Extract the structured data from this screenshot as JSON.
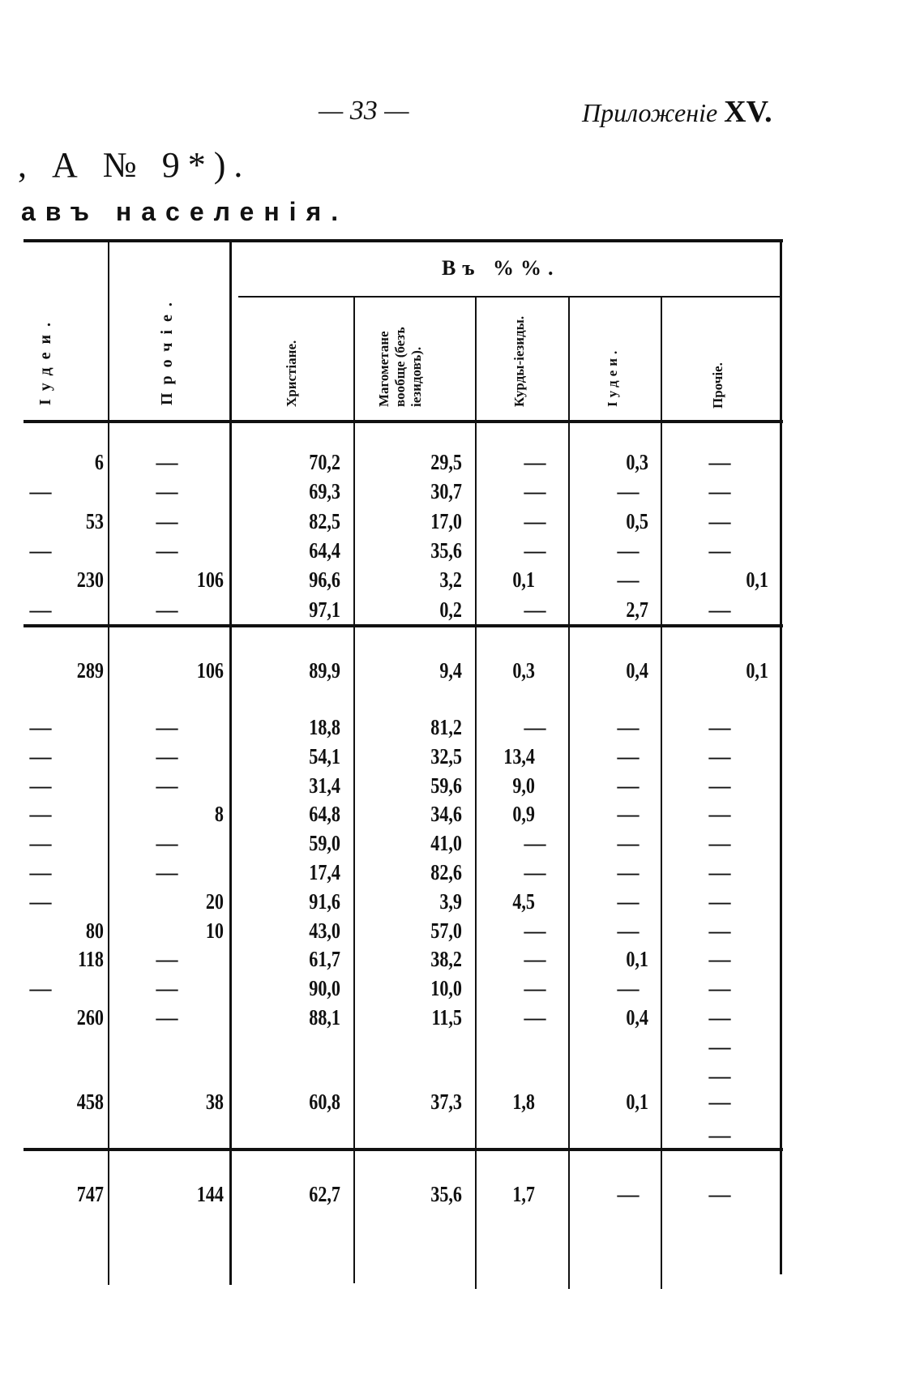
{
  "header": {
    "page_number": "— 33 —",
    "appendix_label": "Приложеніе",
    "appendix_number": "XV."
  },
  "title": ", А № 9*).",
  "subtitle": "авъ населенія.",
  "table": {
    "group_header": "Въ %%.",
    "columns": [
      "Iудеи.",
      "Прочіе.",
      "Христіане.",
      "Магометане вообще (безъ іезидовъ).",
      "Курды-іезиды.",
      "Iудеи.",
      "Прочіе."
    ],
    "section1": [
      [
        "6",
        "—",
        "70,2",
        "29,5",
        "—",
        "0,3",
        "—"
      ],
      [
        "—",
        "—",
        "69,3",
        "30,7",
        "—",
        "—",
        "—"
      ],
      [
        "53",
        "—",
        "82,5",
        "17,0",
        "—",
        "0,5",
        "—"
      ],
      [
        "—",
        "—",
        "64,4",
        "35,6",
        "—",
        "—",
        "—"
      ],
      [
        "230",
        "106",
        "96,6",
        "3,2",
        "0,1",
        "—",
        "0,1"
      ],
      [
        "—",
        "—",
        "97,1",
        "0,2",
        "—",
        "2,7",
        "—"
      ]
    ],
    "section1_total": [
      "289",
      "106",
      "89,9",
      "9,4",
      "0,3",
      "0,4",
      "0,1"
    ],
    "section2": [
      [
        "—",
        "—",
        "18,8",
        "81,2",
        "—",
        "—",
        "—"
      ],
      [
        "—",
        "—",
        "54,1",
        "32,5",
        "13,4",
        "—",
        "—"
      ],
      [
        "—",
        "—",
        "31,4",
        "59,6",
        "9,0",
        "—",
        "—"
      ],
      [
        "—",
        "8",
        "64,8",
        "34,6",
        "0,9",
        "—",
        "—"
      ],
      [
        "—",
        "—",
        "59,0",
        "41,0",
        "—",
        "—",
        "—"
      ],
      [
        "—",
        "—",
        "17,4",
        "82,6",
        "—",
        "—",
        "—"
      ],
      [
        "—",
        "20",
        "91,6",
        "3,9",
        "4,5",
        "—",
        "—"
      ],
      [
        "80",
        "10",
        "43,0",
        "57,0",
        "—",
        "—",
        "—"
      ],
      [
        "118",
        "—",
        "61,7",
        "38,2",
        "—",
        "0,1",
        "—"
      ],
      [
        "—",
        "—",
        "90,0",
        "10,0",
        "—",
        "—",
        "—"
      ],
      [
        "260",
        "—",
        "88,1",
        "11,5",
        "—",
        "0,4",
        "—"
      ],
      [
        "",
        "",
        "",
        "",
        "",
        "",
        "—"
      ],
      [
        "",
        "",
        "",
        "",
        "",
        "",
        "—"
      ]
    ],
    "section2_total": [
      "458",
      "38",
      "60,8",
      "37,3",
      "1,8",
      "0,1",
      "—"
    ],
    "section2_total_extra": [
      "",
      "",
      "",
      "",
      "",
      "",
      "—"
    ],
    "grand_total": [
      "747",
      "144",
      "62,7",
      "35,6",
      "1,7",
      "—",
      "—"
    ]
  }
}
